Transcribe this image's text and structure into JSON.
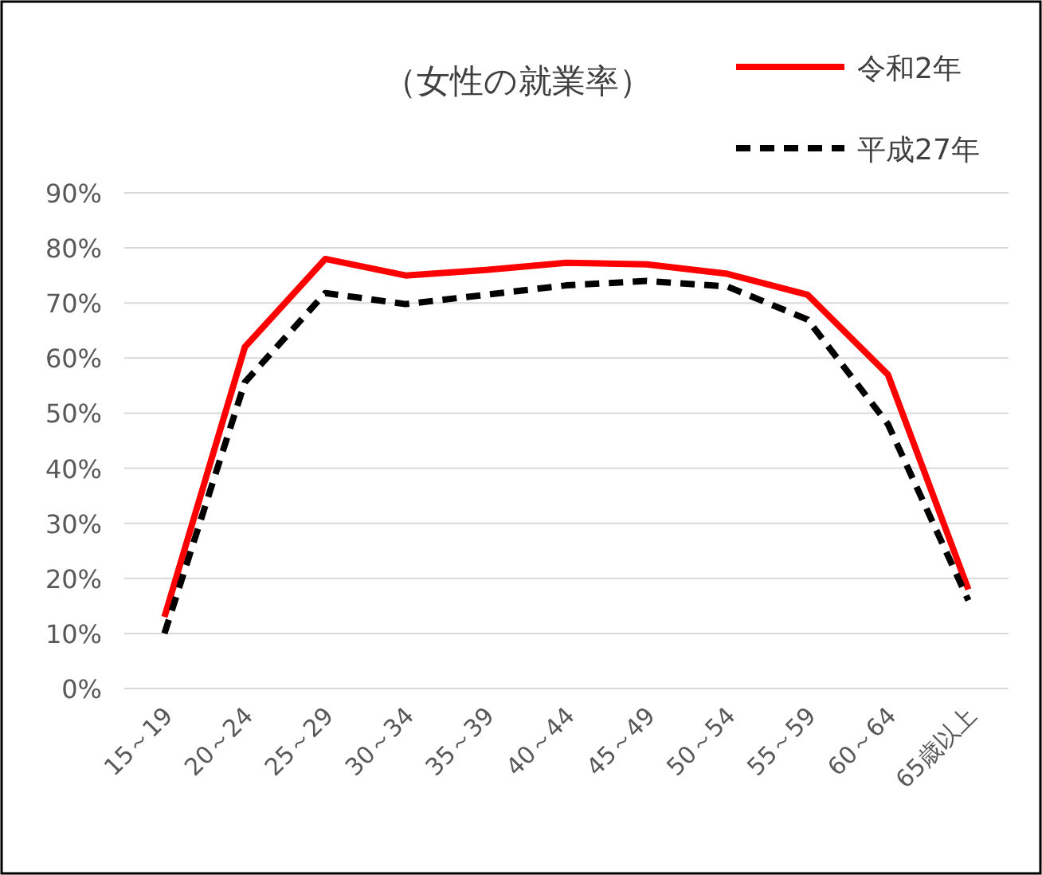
{
  "chart_data": {
    "type": "line",
    "title": "（女性の就業率）",
    "categories": [
      "15～19",
      "20～24",
      "25～29",
      "30～34",
      "35～39",
      "40～44",
      "45～49",
      "50～54",
      "55～59",
      "60～64",
      "65歳以上"
    ],
    "series": [
      {
        "name": "令和2年",
        "color": "#ff0000",
        "line_style": "solid",
        "values": [
          13,
          62,
          78,
          75,
          76,
          77.3,
          77,
          75.3,
          71.5,
          57,
          18
        ]
      },
      {
        "name": "平成27年",
        "color": "#000000",
        "line_style": "dashed",
        "values": [
          10,
          55.6,
          71.8,
          69.8,
          71.5,
          73.2,
          74,
          73,
          67,
          48,
          16
        ]
      }
    ],
    "ylim": [
      0,
      90
    ],
    "yticks": [
      {
        "value": 0,
        "label": "0%"
      },
      {
        "value": 10,
        "label": "10%"
      },
      {
        "value": 20,
        "label": "20%"
      },
      {
        "value": 30,
        "label": "30%"
      },
      {
        "value": 40,
        "label": "40%"
      },
      {
        "value": 50,
        "label": "50%"
      },
      {
        "value": 60,
        "label": "60%"
      },
      {
        "value": 70,
        "label": "70%"
      },
      {
        "value": 80,
        "label": "80%"
      },
      {
        "value": 90,
        "label": "90%"
      }
    ],
    "grid": "y",
    "legend": "top right",
    "marker": "none"
  }
}
